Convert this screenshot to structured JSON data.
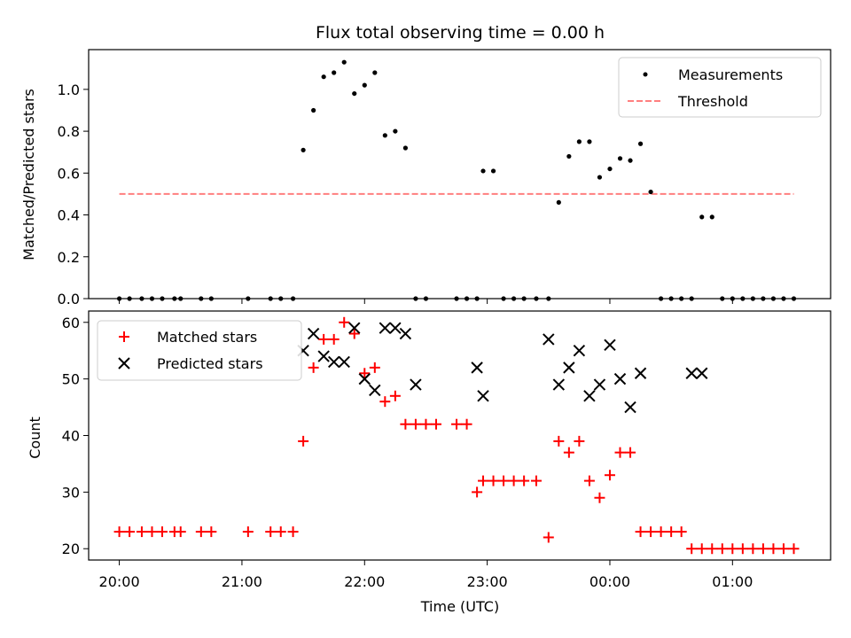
{
  "title": "Flux total observing time = 0.00 h",
  "colors": {
    "measurement": "#000000",
    "threshold": "#ff7f7f",
    "matched": "#ff0000",
    "predicted": "#000000"
  },
  "chart_data": [
    {
      "type": "scatter",
      "panel": "top",
      "title": "Flux total observing time = 0.00 h",
      "xlabel": "",
      "ylabel": "Matched/Predicted stars",
      "xlim": [
        "19:45",
        "01:48"
      ],
      "ylim": [
        0,
        1.19
      ],
      "yticks": [
        "0.0",
        "0.2",
        "0.4",
        "0.6",
        "0.8",
        "1.0"
      ],
      "legend_position": "top-right",
      "legend": [
        {
          "label": "Measurements",
          "marker": "dot"
        },
        {
          "label": "Threshold",
          "marker": "dashed-line"
        }
      ],
      "series": [
        {
          "name": "Measurements",
          "marker": "dot",
          "x": [
            "20:00",
            "20:05",
            "20:11",
            "20:16",
            "20:21",
            "20:27",
            "20:30",
            "20:40",
            "20:45",
            "21:03",
            "21:14",
            "21:19",
            "21:25",
            "21:30",
            "21:35",
            "21:40",
            "21:45",
            "21:50",
            "21:55",
            "22:00",
            "22:05",
            "22:10",
            "22:15",
            "22:20",
            "22:25",
            "22:30",
            "22:45",
            "22:50",
            "22:55",
            "22:58",
            "23:03",
            "23:08",
            "23:13",
            "23:18",
            "23:24",
            "23:30",
            "23:35",
            "23:40",
            "23:45",
            "23:50",
            "23:55",
            "00:00",
            "00:05",
            "00:10",
            "00:15",
            "00:20",
            "00:25",
            "00:30",
            "00:35",
            "00:40",
            "00:45",
            "00:50",
            "00:55",
            "01:00",
            "01:05",
            "01:10",
            "01:15",
            "01:20",
            "01:25",
            "01:30"
          ],
          "y": [
            0,
            0,
            0,
            0,
            0,
            0,
            0,
            0,
            0,
            0,
            0,
            0,
            0,
            0.71,
            0.9,
            1.06,
            1.08,
            1.13,
            0.98,
            1.02,
            1.08,
            0.78,
            0.8,
            0.72,
            0,
            0,
            0,
            0,
            0,
            0.61,
            0.61,
            0,
            0,
            0,
            0,
            0,
            0.46,
            0.68,
            0.75,
            0.75,
            0.58,
            0.62,
            0.67,
            0.66,
            0.74,
            0.51,
            0,
            0,
            0,
            0,
            0.39,
            0.39,
            0,
            0,
            0,
            0,
            0,
            0,
            0,
            0
          ]
        },
        {
          "name": "Threshold",
          "marker": "dashed-line",
          "x": [
            "20:00",
            "01:30"
          ],
          "y": [
            0.5,
            0.5
          ]
        }
      ]
    },
    {
      "type": "scatter",
      "panel": "bottom",
      "xlabel": "Time (UTC)",
      "ylabel": "Count",
      "xlim": [
        "19:45",
        "01:48"
      ],
      "ylim": [
        18,
        62
      ],
      "xticks": [
        "20:00",
        "21:00",
        "22:00",
        "23:00",
        "00:00",
        "01:00"
      ],
      "yticks": [
        "20",
        "30",
        "40",
        "50",
        "60"
      ],
      "legend_position": "top-left",
      "legend": [
        {
          "label": "Matched stars",
          "marker": "plus"
        },
        {
          "label": "Predicted stars",
          "marker": "x"
        }
      ],
      "series": [
        {
          "name": "Matched stars",
          "marker": "plus",
          "x": [
            "20:00",
            "20:05",
            "20:11",
            "20:16",
            "20:21",
            "20:27",
            "20:30",
            "20:40",
            "20:45",
            "21:03",
            "21:14",
            "21:19",
            "21:25",
            "21:30",
            "21:35",
            "21:40",
            "21:45",
            "21:50",
            "21:55",
            "22:00",
            "22:05",
            "22:10",
            "22:15",
            "22:20",
            "22:25",
            "22:30",
            "22:35",
            "22:45",
            "22:50",
            "22:55",
            "22:58",
            "23:03",
            "23:08",
            "23:13",
            "23:18",
            "23:24",
            "23:30",
            "23:35",
            "23:40",
            "23:45",
            "23:50",
            "23:55",
            "00:00",
            "00:05",
            "00:10",
            "00:15",
            "00:20",
            "00:25",
            "00:30",
            "00:35",
            "00:40",
            "00:45",
            "00:50",
            "00:55",
            "01:00",
            "01:05",
            "01:10",
            "01:15",
            "01:20",
            "01:25",
            "01:30"
          ],
          "y": [
            23,
            23,
            23,
            23,
            23,
            23,
            23,
            23,
            23,
            23,
            23,
            23,
            23,
            39,
            52,
            57,
            57,
            60,
            58,
            51,
            52,
            46,
            47,
            42,
            42,
            42,
            42,
            42,
            42,
            30,
            32,
            32,
            32,
            32,
            32,
            32,
            22,
            39,
            37,
            39,
            32,
            29,
            33,
            37,
            37,
            23,
            23,
            23,
            23,
            23,
            20,
            20,
            20,
            20,
            20,
            20,
            20,
            20,
            20,
            20,
            20
          ]
        },
        {
          "name": "Predicted stars",
          "marker": "x",
          "x": [
            "21:30",
            "21:35",
            "21:40",
            "21:45",
            "21:50",
            "21:55",
            "22:00",
            "22:05",
            "22:10",
            "22:15",
            "22:20",
            "22:25",
            "22:55",
            "22:58",
            "23:30",
            "23:35",
            "23:40",
            "23:45",
            "23:50",
            "23:55",
            "00:00",
            "00:05",
            "00:10",
            "00:15",
            "00:40",
            "00:45"
          ],
          "y": [
            55,
            58,
            54,
            53,
            53,
            59,
            50,
            48,
            59,
            59,
            58,
            49,
            52,
            47,
            57,
            49,
            52,
            55,
            47,
            49,
            56,
            50,
            45,
            51,
            51,
            51
          ]
        }
      ]
    }
  ]
}
